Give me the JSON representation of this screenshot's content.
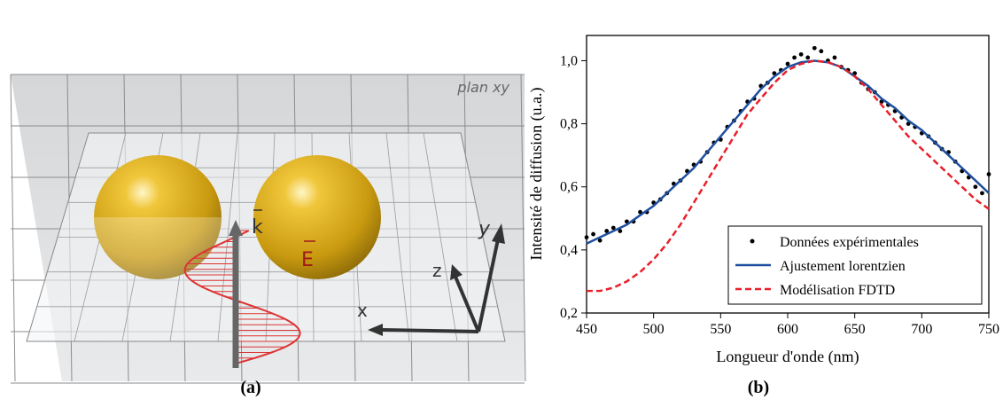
{
  "panel_a": {
    "plane_label": "plan xy",
    "k_label": "k",
    "e_label": "E",
    "x_label": "x",
    "y_label": "y",
    "z_label": "z",
    "caption": "(a)"
  },
  "chart_data": {
    "type": "line",
    "caption": "(b)",
    "xlabel": "Longueur d'onde (nm)",
    "ylabel": "Intensité de diffusion (u.a.)",
    "xlim": [
      450,
      750
    ],
    "xticks": [
      450,
      500,
      550,
      600,
      650,
      700,
      750
    ],
    "ylim": [
      0.2,
      1.08
    ],
    "yticks": [
      {
        "value": 0.2,
        "label": "0,2"
      },
      {
        "value": 0.4,
        "label": "0,4"
      },
      {
        "value": 0.6,
        "label": "0,6"
      },
      {
        "value": 0.8,
        "label": "0,8"
      },
      {
        "value": 1.0,
        "label": "1,0"
      }
    ],
    "legend": "lower right",
    "series": [
      {
        "name": "Données expérimentales",
        "color": "#000000",
        "style": "marker",
        "x": [
          450,
          455,
          460,
          465,
          470,
          475,
          480,
          485,
          490,
          495,
          500,
          505,
          510,
          515,
          520,
          525,
          530,
          535,
          540,
          545,
          550,
          555,
          560,
          565,
          570,
          575,
          580,
          585,
          590,
          595,
          600,
          605,
          610,
          615,
          620,
          625,
          630,
          635,
          640,
          645,
          650,
          655,
          660,
          665,
          670,
          675,
          680,
          685,
          690,
          695,
          700,
          705,
          710,
          715,
          720,
          725,
          730,
          735,
          740,
          745,
          750
        ],
        "values": [
          0.44,
          0.45,
          0.43,
          0.46,
          0.47,
          0.46,
          0.49,
          0.49,
          0.52,
          0.52,
          0.55,
          0.56,
          0.58,
          0.61,
          0.62,
          0.65,
          0.67,
          0.68,
          0.71,
          0.74,
          0.75,
          0.79,
          0.81,
          0.84,
          0.87,
          0.88,
          0.92,
          0.93,
          0.96,
          0.97,
          0.99,
          1.01,
          1.02,
          1.01,
          1.04,
          1.03,
          1.0,
          1.01,
          0.98,
          0.97,
          0.96,
          0.93,
          0.91,
          0.9,
          0.87,
          0.86,
          0.84,
          0.82,
          0.8,
          0.79,
          0.77,
          0.76,
          0.74,
          0.72,
          0.71,
          0.68,
          0.65,
          0.63,
          0.6,
          0.58,
          0.64
        ]
      },
      {
        "name": "Ajustement lorentzien",
        "color": "#1f4fa0",
        "style": "solid",
        "x": [
          450,
          460,
          470,
          480,
          490,
          500,
          510,
          520,
          530,
          540,
          550,
          560,
          570,
          580,
          590,
          600,
          610,
          620,
          630,
          640,
          650,
          660,
          670,
          680,
          690,
          700,
          710,
          720,
          730,
          740,
          750
        ],
        "values": [
          0.42,
          0.44,
          0.46,
          0.48,
          0.51,
          0.54,
          0.58,
          0.62,
          0.66,
          0.71,
          0.76,
          0.81,
          0.86,
          0.91,
          0.95,
          0.98,
          0.995,
          1.0,
          0.995,
          0.98,
          0.95,
          0.92,
          0.88,
          0.85,
          0.81,
          0.78,
          0.74,
          0.7,
          0.66,
          0.62,
          0.58
        ]
      },
      {
        "name": "Modélisation FDTD",
        "color": "#e8202a",
        "style": "dashed",
        "x": [
          450,
          460,
          470,
          480,
          490,
          500,
          510,
          520,
          530,
          540,
          550,
          560,
          570,
          580,
          590,
          600,
          610,
          620,
          630,
          640,
          650,
          660,
          670,
          680,
          690,
          700,
          710,
          720,
          730,
          740,
          750
        ],
        "values": [
          0.27,
          0.27,
          0.28,
          0.3,
          0.33,
          0.37,
          0.42,
          0.48,
          0.55,
          0.62,
          0.69,
          0.76,
          0.83,
          0.88,
          0.93,
          0.97,
          0.99,
          1.0,
          0.995,
          0.98,
          0.95,
          0.91,
          0.86,
          0.81,
          0.76,
          0.72,
          0.68,
          0.64,
          0.6,
          0.56,
          0.53
        ]
      }
    ]
  }
}
